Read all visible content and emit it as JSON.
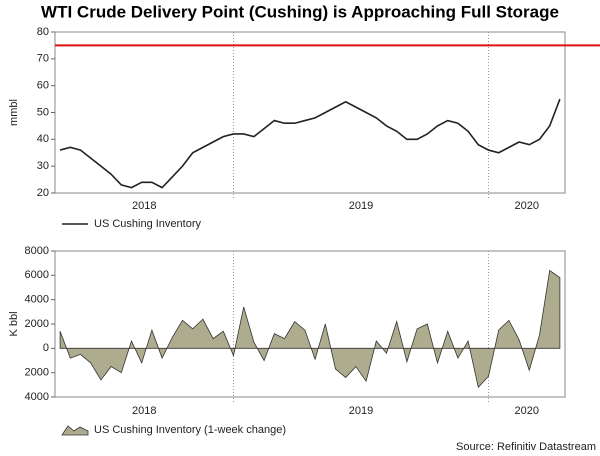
{
  "title": "WTI Crude Delivery Point (Cushing) is Approaching Full Storage",
  "source": "Source: Refinitiv Datastream",
  "chart_data": [
    {
      "type": "line",
      "y_label": "mmbl",
      "x": [
        2018.32,
        2018.36,
        2018.4,
        2018.44,
        2018.48,
        2018.52,
        2018.56,
        2018.6,
        2018.64,
        2018.68,
        2018.72,
        2018.76,
        2018.8,
        2018.84,
        2018.88,
        2018.92,
        2018.96,
        2019.0,
        2019.04,
        2019.08,
        2019.12,
        2019.16,
        2019.2,
        2019.24,
        2019.28,
        2019.32,
        2019.36,
        2019.4,
        2019.44,
        2019.48,
        2019.52,
        2019.56,
        2019.6,
        2019.64,
        2019.68,
        2019.72,
        2019.76,
        2019.8,
        2019.84,
        2019.88,
        2019.92,
        2019.96,
        2020.0,
        2020.04,
        2020.08,
        2020.12,
        2020.16,
        2020.2,
        2020.24,
        2020.28
      ],
      "series": [
        {
          "name": "US Cushing Inventory",
          "color": "#222222",
          "values": [
            36,
            37,
            36,
            33,
            30,
            27,
            23,
            22,
            24,
            24,
            22,
            26,
            30,
            35,
            37,
            39,
            41,
            42,
            42,
            41,
            44,
            47,
            46,
            46,
            47,
            48,
            50,
            52,
            54,
            52,
            50,
            48,
            45,
            43,
            40,
            40,
            42,
            45,
            47,
            46,
            43,
            38,
            36,
            35,
            37,
            39,
            38,
            40,
            45,
            55
          ]
        }
      ],
      "reference_line": {
        "value": 75,
        "color": "#e01010"
      },
      "xlim": [
        2018.3,
        2020.3
      ],
      "xticks": [
        2019,
        2020
      ],
      "xlabels": [
        2018,
        2019,
        2020
      ],
      "ylim": [
        20,
        80
      ],
      "yticks": [
        20,
        30,
        40,
        50,
        60,
        70,
        80
      ]
    },
    {
      "type": "area",
      "y_label": "K bbl",
      "x": [
        2018.32,
        2018.36,
        2018.4,
        2018.44,
        2018.48,
        2018.52,
        2018.56,
        2018.6,
        2018.64,
        2018.68,
        2018.72,
        2018.76,
        2018.8,
        2018.84,
        2018.88,
        2018.92,
        2018.96,
        2019.0,
        2019.04,
        2019.08,
        2019.12,
        2019.16,
        2019.2,
        2019.24,
        2019.28,
        2019.32,
        2019.36,
        2019.4,
        2019.44,
        2019.48,
        2019.52,
        2019.56,
        2019.6,
        2019.64,
        2019.68,
        2019.72,
        2019.76,
        2019.8,
        2019.84,
        2019.88,
        2019.92,
        2019.96,
        2020.0,
        2020.04,
        2020.08,
        2020.12,
        2020.16,
        2020.2,
        2020.24,
        2020.28
      ],
      "series": [
        {
          "name": "US Cushing Inventory (1-week change)",
          "color": "#aeac8e",
          "values": [
            1400,
            -800,
            -500,
            -1200,
            -2600,
            -1500,
            -2000,
            600,
            -1200,
            1500,
            -800,
            900,
            2300,
            1600,
            2400,
            800,
            1400,
            -600,
            3400,
            500,
            -1000,
            1200,
            800,
            2200,
            1500,
            -900,
            2000,
            -1700,
            -2400,
            -1500,
            -2700,
            600,
            -400,
            2200,
            -1100,
            1600,
            2000,
            -1200,
            1400,
            -800,
            600,
            -3200,
            -2300,
            1500,
            2300,
            700,
            -1800,
            1100,
            6400,
            5800
          ]
        }
      ],
      "xlim": [
        2018.3,
        2020.3
      ],
      "xticks": [
        2019,
        2020
      ],
      "xlabels": [
        2018,
        2019,
        2020
      ],
      "ylim": [
        -4000,
        8000
      ],
      "yticks": [
        {
          "value": -4000,
          "label": "4000"
        },
        {
          "value": -2000,
          "label": "2000"
        },
        0,
        2000,
        4000,
        6000,
        8000
      ]
    }
  ]
}
